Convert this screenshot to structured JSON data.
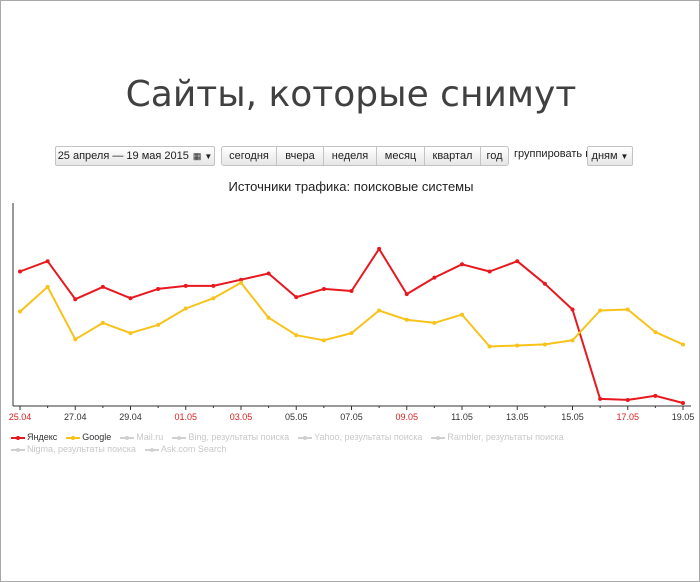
{
  "slide": {
    "title": "Сайты, которые снимут"
  },
  "toolbar": {
    "date_range": "25 апреля — 19 мая 2015",
    "periods": [
      "сегодня",
      "вчера",
      "неделя",
      "месяц",
      "квартал",
      "год"
    ],
    "group_label": "группировать по",
    "group_value": "дням"
  },
  "colors": {
    "yandex": "#e8181f",
    "google": "#f7c31a",
    "axis": "#333333",
    "inactive": "#d0d0d0",
    "weekend_tick": "#d62020"
  },
  "chart_data": {
    "type": "line",
    "title": "Источники трафика: поисковые системы",
    "x": [
      "25.04",
      "26.04",
      "27.04",
      "28.04",
      "29.04",
      "30.04",
      "01.05",
      "02.05",
      "03.05",
      "04.05",
      "05.05",
      "06.05",
      "07.05",
      "08.05",
      "09.05",
      "10.05",
      "11.05",
      "12.05",
      "13.05",
      "14.05",
      "15.05",
      "16.05",
      "17.05",
      "18.05",
      "19.05"
    ],
    "x_tick_labels": [
      "25.04",
      "27.04",
      "29.04",
      "01.05",
      "03.05",
      "05.05",
      "07.05",
      "09.05",
      "11.05",
      "13.05",
      "15.05",
      "17.05",
      "19.05"
    ],
    "red_tick_labels": [
      "25.04",
      "01.05",
      "03.05",
      "09.05",
      "17.05"
    ],
    "y_tick_labels": false,
    "ylim": [
      0,
      180
    ],
    "grid": false,
    "series": [
      {
        "name": "Яндекс",
        "color": "#e8181f",
        "active": true,
        "values": [
          127,
          137,
          100,
          112,
          101,
          110,
          113,
          113,
          119,
          125,
          102,
          110,
          108,
          149,
          105,
          121,
          134,
          127,
          137,
          115,
          90,
          3,
          2,
          6,
          -1
        ]
      },
      {
        "name": "Google",
        "color": "#f7c31a",
        "active": true,
        "values": [
          88,
          112,
          61,
          77,
          67,
          75,
          91,
          101,
          116,
          82,
          65,
          60,
          67,
          89,
          80,
          77,
          85,
          54,
          55,
          56,
          60,
          89,
          90,
          68,
          56
        ]
      },
      {
        "name": "Mail.ru",
        "active": false
      },
      {
        "name": "Bing, результаты поиска",
        "active": false
      },
      {
        "name": "Yahoo, результаты поиска",
        "active": false
      },
      {
        "name": "Rambler, результаты поиска",
        "active": false
      },
      {
        "name": "Nigma, результаты поиска",
        "active": false
      },
      {
        "name": "Ask.com Search",
        "active": false
      }
    ],
    "legend_position": "bottom"
  }
}
